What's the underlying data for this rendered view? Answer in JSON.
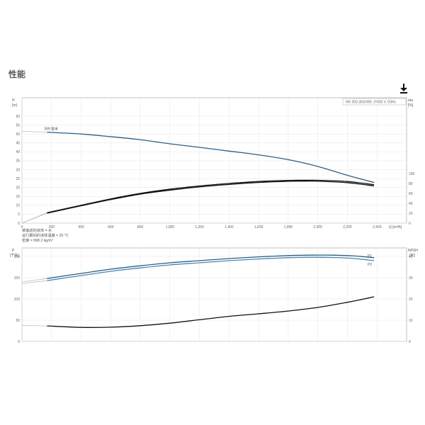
{
  "section_title": "性能",
  "download_icon": "download-icon",
  "chart_data": [
    {
      "type": "line",
      "name": "performance-curve",
      "header_box": "NK 350-350/399, 3*400 V, 50Hz",
      "x_unit": "Q [m³/h]",
      "x_ticks": [
        "0",
        "200",
        "400",
        "600",
        "800",
        "1,000",
        "1,200",
        "1,400",
        "1,600",
        "1,800",
        "2,000",
        "2,200",
        "2,400"
      ],
      "xlim": [
        0,
        2600
      ],
      "left_axis": {
        "label": "H",
        "unit": "[m]",
        "ticks": [
          "0",
          "5",
          "10",
          "15",
          "20",
          "25",
          "30",
          "35",
          "40",
          "45",
          "50",
          "55",
          "60"
        ],
        "ylim": [
          0,
          60
        ]
      },
      "right_axis": {
        "label": "eta",
        "unit": "[%]",
        "ticks": [
          "0",
          "20",
          "40",
          "60",
          "80",
          "100"
        ],
        "ylim": [
          0,
          100
        ]
      },
      "curve_label": "399 毫米",
      "series": [
        {
          "axis": "left",
          "color": "#2a5f86",
          "start_x": 170,
          "x": [
            0,
            170,
            400,
            600,
            800,
            1000,
            1200,
            1400,
            1600,
            1800,
            2000,
            2200,
            2380
          ],
          "y": [
            51.5,
            51,
            50,
            48.5,
            46.8,
            44.5,
            42.5,
            40.4,
            38.3,
            35.6,
            31.8,
            26.8,
            22.8
          ]
        },
        {
          "axis": "right",
          "color": "#111111",
          "start_x": 170,
          "x": [
            0,
            170,
            400,
            600,
            800,
            1000,
            1200,
            1400,
            1600,
            1800,
            1900,
            2000,
            2200,
            2380
          ],
          "y": [
            0,
            21,
            36,
            49,
            60,
            68.5,
            75,
            80,
            84,
            86.2,
            86.5,
            86.4,
            84,
            77.5
          ]
        },
        {
          "axis": "right",
          "color": "#111111",
          "start_x": 170,
          "x": [
            0,
            170,
            400,
            600,
            800,
            1000,
            1200,
            1400,
            1600,
            1800,
            1900,
            2000,
            2200,
            2380
          ],
          "y": [
            0,
            20,
            35,
            47.5,
            58.5,
            66.5,
            73,
            78,
            82,
            84.4,
            84.7,
            84.5,
            81.5,
            75
          ]
        }
      ],
      "notes": [
        "被抽送的液体 = 水",
        "运行期间的液体温度 = 20 °C",
        "密度 = 998.2 kg/m³"
      ]
    },
    {
      "type": "line",
      "name": "power-npsh-curve",
      "left_axis": {
        "label": "P",
        "unit": "[千瓦]",
        "ticks": [
          "0",
          "50",
          "100",
          "150",
          "200"
        ],
        "ylim": [
          0,
          220
        ]
      },
      "right_axis": {
        "label": "NPSH",
        "unit": "[米]",
        "ticks": [
          "0",
          "10",
          "20",
          "30",
          "40"
        ],
        "ylim": [
          0,
          44
        ]
      },
      "xlim": [
        0,
        2600
      ],
      "series": [
        {
          "name": "P1",
          "axis": "left",
          "color": "#2a5f86",
          "start_x": 170,
          "x": [
            0,
            170,
            400,
            600,
            800,
            1000,
            1200,
            1400,
            1600,
            1800,
            1950,
            2100,
            2250,
            2380
          ],
          "y": [
            140,
            148,
            160,
            170,
            178,
            185,
            190,
            195,
            199,
            202,
            203,
            203,
            201,
            197
          ]
        },
        {
          "name": "P2",
          "axis": "left",
          "color": "#4a86b4",
          "start_x": 170,
          "x": [
            0,
            170,
            400,
            600,
            800,
            1000,
            1200,
            1400,
            1600,
            1800,
            1950,
            2100,
            2250,
            2380
          ],
          "y": [
            136,
            143,
            155,
            165,
            173,
            180,
            185,
            190,
            194,
            197,
            198,
            197.5,
            195,
            190
          ]
        },
        {
          "axis": "right",
          "color": "#111111",
          "start_x": 170,
          "x": [
            0,
            170,
            400,
            600,
            800,
            1000,
            1200,
            1400,
            1600,
            1800,
            2000,
            2200,
            2300,
            2380
          ],
          "y": [
            7.6,
            7.3,
            6.6,
            6.7,
            7.4,
            8.6,
            10.2,
            11.8,
            13.0,
            14.3,
            16.0,
            18.4,
            19.8,
            21.0
          ]
        }
      ]
    }
  ]
}
